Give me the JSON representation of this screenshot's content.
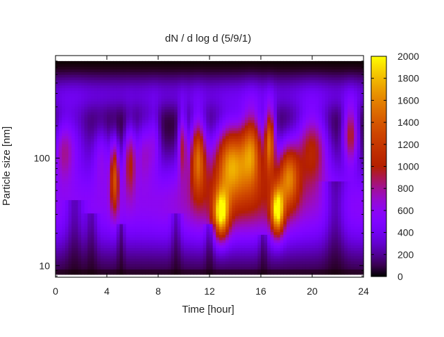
{
  "chart_data": {
    "type": "heatmap",
    "title": "dN / d log d (5/9/1)",
    "xlabel": "Time [hour]",
    "ylabel": "Particle size [nm]",
    "x_ticks": [
      0,
      4,
      8,
      12,
      16,
      20,
      24
    ],
    "xlim": [
      0,
      24
    ],
    "y_scale": "log",
    "y_ticks": [
      10,
      100
    ],
    "ylim": [
      7.8,
      900
    ],
    "colorbar": {
      "min": 0,
      "max": 2000,
      "ticks": [
        0,
        200,
        400,
        600,
        800,
        1000,
        1200,
        1400,
        1600,
        1800,
        2000
      ],
      "colormap": "gnuplot (black-purple-red-orange-yellow)"
    },
    "data_y_range": [
      8.3,
      800
    ],
    "features": {
      "peak_times_hours": [
        4.6,
        6.0,
        10.0,
        11.0,
        13.0,
        16.6,
        17.2,
        23.0
      ],
      "mode_diameter_nm_range": [
        20,
        120
      ],
      "max_value_approx": 1900
    }
  }
}
